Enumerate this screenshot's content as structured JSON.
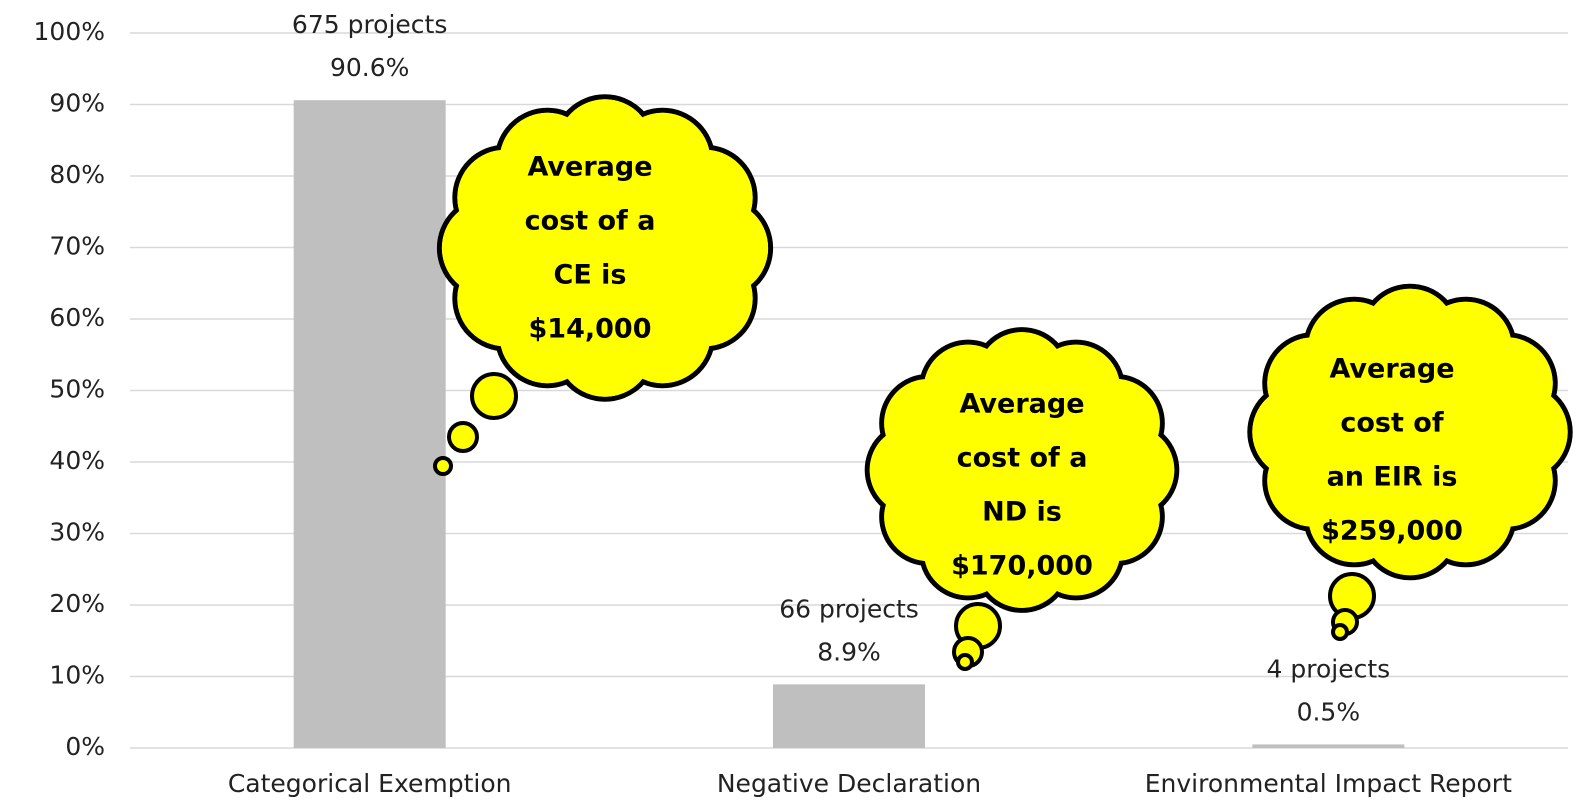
{
  "chart_data": {
    "type": "bar",
    "categories": [
      "Categorical Exemption",
      "Negative Declaration",
      "Environmental Impact Report"
    ],
    "values": [
      90.6,
      8.9,
      0.5
    ],
    "value_labels": [
      "90.6%",
      "8.9%",
      "0.5%"
    ],
    "project_labels": [
      "675 projects",
      "66 projects",
      "4 projects"
    ],
    "color": "#bfbfbf",
    "ylim": [
      0,
      100
    ],
    "yticks": [
      {
        "value": 0,
        "label": "0%"
      },
      {
        "value": 10,
        "label": "10%"
      },
      {
        "value": 20,
        "label": "20%"
      },
      {
        "value": 30,
        "label": "30%"
      },
      {
        "value": 40,
        "label": "40%"
      },
      {
        "value": 50,
        "label": "50%"
      },
      {
        "value": 60,
        "label": "60%"
      },
      {
        "value": 70,
        "label": "70%"
      },
      {
        "value": 80,
        "label": "80%"
      },
      {
        "value": 90,
        "label": "90%"
      },
      {
        "value": 100,
        "label": "100%"
      }
    ],
    "grid": true,
    "annotations": [
      [
        "Average",
        "cost of a",
        "CE is",
        "$14,000"
      ],
      [
        "Average",
        "cost of a",
        "ND is",
        "$170,000"
      ],
      [
        "Average",
        "cost of",
        "an EIR is",
        "$259,000"
      ]
    ]
  }
}
